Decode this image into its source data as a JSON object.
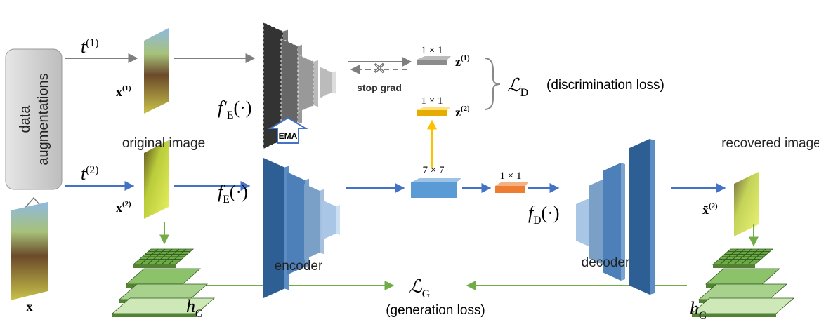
{
  "augmentation": {
    "lines": [
      "data",
      "augmentations"
    ]
  },
  "transforms": {
    "t1": {
      "base": "t",
      "sup": "(1)"
    },
    "t2": {
      "base": "t",
      "sup": "(2)"
    }
  },
  "images": {
    "x": "x",
    "x1": {
      "base": "x",
      "sup": "(1)"
    },
    "x2": {
      "base": "x",
      "sup": "(2)"
    },
    "x2_recovered": {
      "base": "x̃",
      "sup": "(2)"
    },
    "original_caption": "original image",
    "recovered_caption": "recovered image"
  },
  "networks": {
    "momentum_encoder": {
      "base": "f′",
      "sub": "E",
      "tail": "(·)"
    },
    "ema": "EMA",
    "encoder": {
      "base": "f",
      "sub": "E",
      "tail": "(·)",
      "caption": "encoder"
    },
    "decoder": {
      "base": "f",
      "sub": "D",
      "tail": "(·)",
      "caption": "decoder"
    }
  },
  "features": {
    "z1": {
      "size": "1 × 1",
      "base": "z",
      "sup": "(1)"
    },
    "z2": {
      "size": "1 × 1",
      "base": "z",
      "sup": "(2)"
    },
    "map": "7 × 7",
    "latent": "1 × 1",
    "stop_grad": "stop grad"
  },
  "losses": {
    "discrimination": {
      "base": "ℒ",
      "sub": "D",
      "caption": "(discrimination loss)"
    },
    "generation": {
      "base": "ℒ",
      "sub": "G",
      "caption": "(generation loss)"
    },
    "hog_left": {
      "base": "h",
      "sub": "G"
    },
    "hog_right": {
      "base": "h",
      "sub": "G"
    }
  }
}
